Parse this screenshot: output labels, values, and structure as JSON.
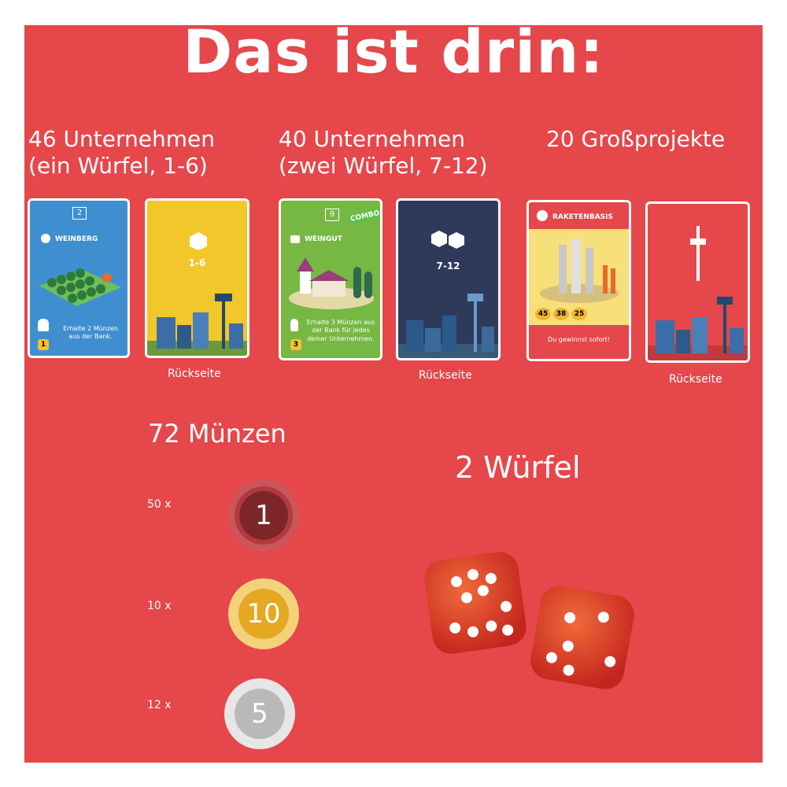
{
  "title": "Das ist drin:",
  "sections": {
    "one_die": {
      "line1": "46 Unternehmen",
      "line2": "(ein Würfel, 1-6)"
    },
    "two_dice": {
      "line1": "40 Unternehmen",
      "line2": "(zwei Würfel, 7-12)"
    },
    "projects": {
      "line1": "20 Großprojekte"
    }
  },
  "cards": {
    "weinberg": {
      "cost": "2",
      "name": "WEINBERG",
      "text": "Erhalte 2 Münzen aus der Bank.",
      "number": "1"
    },
    "back_1_6": {
      "label": "1-6",
      "caption": "Rückseite"
    },
    "weingut": {
      "cost": "9",
      "badge": "COMBO",
      "name": "WEINGUT",
      "text": "Erhalte 3 Münzen aus der Bank für jedes deiner Unternehmen.",
      "number": "3"
    },
    "back_7_12": {
      "label": "7-12",
      "caption": "Rückseite"
    },
    "raketenbasis": {
      "name": "RAKETENBASIS",
      "costs": [
        "45",
        "38",
        "25"
      ],
      "text": "Du gewinnst sofort!"
    },
    "back_projects": {
      "caption": "Rückseite"
    }
  },
  "coins": {
    "heading": "72 Münzen",
    "items": [
      {
        "count": "50 x",
        "value": "1"
      },
      {
        "count": "10 x",
        "value": "10"
      },
      {
        "count": "12 x",
        "value": "5"
      }
    ]
  },
  "dice": {
    "heading": "2 Würfel"
  },
  "colors": {
    "background": "#e5474b",
    "coin_1": "#8b2a2e",
    "coin_10": "#e5a823",
    "coin_5": "#c9c9c9"
  }
}
